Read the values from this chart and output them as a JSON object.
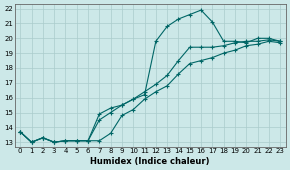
{
  "xlabel": "Humidex (Indice chaleur)",
  "bg_color": "#cce8e8",
  "grid_color": "#aacccc",
  "line_color": "#006666",
  "xlim_min": -0.5,
  "xlim_max": 23.5,
  "ylim_min": 12.7,
  "ylim_max": 22.3,
  "xticks": [
    0,
    1,
    2,
    3,
    4,
    5,
    6,
    7,
    8,
    9,
    10,
    11,
    12,
    13,
    14,
    15,
    16,
    17,
    18,
    19,
    20,
    21,
    22,
    23
  ],
  "yticks": [
    13,
    14,
    15,
    16,
    17,
    18,
    19,
    20,
    21,
    22
  ],
  "series1_x": [
    0,
    1,
    2,
    3,
    4,
    5,
    6,
    7,
    8,
    9,
    10,
    11,
    12,
    13,
    14,
    15,
    16,
    17,
    18,
    19,
    20,
    21,
    22,
    23
  ],
  "series1_y": [
    13.7,
    13.0,
    13.3,
    13.0,
    13.1,
    13.1,
    13.1,
    13.1,
    13.6,
    14.8,
    15.2,
    15.9,
    16.4,
    16.8,
    17.6,
    18.3,
    18.5,
    18.7,
    19.0,
    19.2,
    19.5,
    19.6,
    19.8,
    19.7
  ],
  "series2_x": [
    0,
    1,
    2,
    3,
    4,
    5,
    6,
    7,
    8,
    9,
    10,
    11,
    12,
    13,
    14,
    15,
    16,
    17,
    18,
    19,
    20,
    21,
    22,
    23
  ],
  "series2_y": [
    13.7,
    13.0,
    13.3,
    13.0,
    13.1,
    13.1,
    13.1,
    14.5,
    15.0,
    15.5,
    15.9,
    16.4,
    16.9,
    17.5,
    18.5,
    19.4,
    19.4,
    19.4,
    19.5,
    19.7,
    19.8,
    19.8,
    19.9,
    19.8
  ],
  "series3_x": [
    0,
    1,
    2,
    3,
    4,
    5,
    6,
    7,
    8,
    9,
    10,
    11,
    12,
    13,
    14,
    15,
    16,
    17,
    18,
    19,
    20,
    21,
    22,
    23
  ],
  "series3_y": [
    13.7,
    13.0,
    13.3,
    13.0,
    13.1,
    13.1,
    13.1,
    14.9,
    15.3,
    15.5,
    15.9,
    16.2,
    19.8,
    20.8,
    21.3,
    21.6,
    21.9,
    21.1,
    19.8,
    19.8,
    19.7,
    20.0,
    20.0,
    19.8
  ]
}
